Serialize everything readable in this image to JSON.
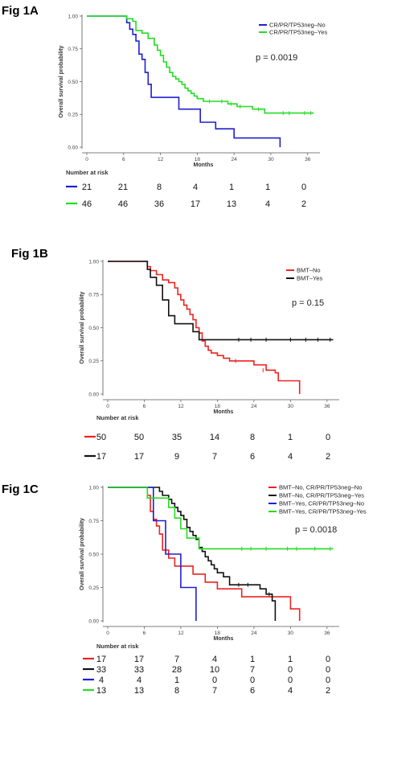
{
  "chart_data": [
    {
      "type": "line",
      "panel_label": "Fig 1A",
      "xlabel": "Months",
      "ylabel": "Overall survival probability",
      "xlim": [
        0,
        38
      ],
      "ylim": [
        0,
        1
      ],
      "xticks": [
        0,
        6,
        12,
        18,
        24,
        30,
        36
      ],
      "yticks": [
        "0.00",
        "0.25",
        "0.50",
        "0.75",
        "1.00"
      ],
      "grid": false,
      "legend_position": "top-right",
      "p_value": "p = 0.0019",
      "risk_table_title": "Number at risk",
      "risk_table": [
        {
          "color": "#1f1fd1",
          "values": [
            "21",
            "21",
            "8",
            "4",
            "1",
            "1",
            "0"
          ]
        },
        {
          "color": "#22dd22",
          "values": [
            "46",
            "46",
            "36",
            "17",
            "13",
            "4",
            "2"
          ]
        }
      ],
      "series": [
        {
          "name": "CR/PR/TP53neg–No",
          "color": "#1f1fd1",
          "x": [
            0,
            6,
            6.5,
            7,
            7.5,
            8,
            8.5,
            9,
            9.5,
            10,
            10.5,
            14,
            15,
            18,
            18.5,
            21,
            24,
            31.5
          ],
          "y": [
            1.0,
            1.0,
            0.95,
            0.9,
            0.86,
            0.81,
            0.71,
            0.67,
            0.57,
            0.48,
            0.38,
            0.38,
            0.29,
            0.29,
            0.19,
            0.14,
            0.07,
            0.0
          ],
          "end_x": 31.5,
          "censor_x": [],
          "censor_y": []
        },
        {
          "name": "CR/PR/TP53neg–Yes",
          "color": "#22dd22",
          "x": [
            0,
            6.5,
            7.5,
            8,
            9,
            10,
            11,
            11.5,
            12,
            12.5,
            13,
            13.5,
            14,
            14.5,
            15,
            15.5,
            16,
            16.5,
            17,
            17.5,
            18,
            19,
            20,
            21,
            23,
            24.5,
            27,
            29,
            37
          ],
          "y": [
            1.0,
            0.98,
            0.96,
            0.89,
            0.87,
            0.83,
            0.78,
            0.74,
            0.7,
            0.65,
            0.61,
            0.57,
            0.54,
            0.52,
            0.5,
            0.48,
            0.45,
            0.43,
            0.41,
            0.39,
            0.37,
            0.35,
            0.35,
            0.35,
            0.33,
            0.31,
            0.29,
            0.26,
            0.26
          ],
          "end_x": 37,
          "censor_x": [
            20,
            22,
            23.5,
            25,
            28,
            32,
            33,
            35.5,
            36.5
          ],
          "censor_y": [
            0.35,
            0.35,
            0.33,
            0.31,
            0.29,
            0.26,
            0.26,
            0.26,
            0.26
          ]
        }
      ]
    },
    {
      "type": "line",
      "panel_label": "Fig 1B",
      "xlabel": "Months",
      "ylabel": "Overall survival probability",
      "xlim": [
        0,
        38
      ],
      "ylim": [
        0,
        1
      ],
      "xticks": [
        0,
        6,
        12,
        18,
        24,
        30,
        36
      ],
      "yticks": [
        "0.00",
        "0.25",
        "0.50",
        "0.75",
        "1.00"
      ],
      "grid": false,
      "legend_position": "top-right",
      "p_value": "p = 0.15",
      "risk_table_title": "Number at risk",
      "risk_table": [
        {
          "color": "#ee2222",
          "values": [
            "50",
            "50",
            "35",
            "14",
            "8",
            "1",
            "0"
          ]
        },
        {
          "color": "#111111",
          "values": [
            "17",
            "17",
            "9",
            "7",
            "6",
            "4",
            "2"
          ]
        }
      ],
      "series": [
        {
          "name": "BMT–No",
          "color": "#ee2222",
          "x": [
            0,
            6,
            6.5,
            7,
            8,
            9,
            10,
            11,
            11.5,
            12,
            12.5,
            13,
            13.5,
            14,
            14.5,
            15,
            15.5,
            16,
            16.5,
            17,
            18,
            19,
            20,
            22,
            24,
            26,
            27.5,
            28,
            31.5
          ],
          "y": [
            1.0,
            1.0,
            0.96,
            0.93,
            0.9,
            0.86,
            0.84,
            0.8,
            0.75,
            0.71,
            0.67,
            0.64,
            0.6,
            0.56,
            0.5,
            0.46,
            0.4,
            0.36,
            0.33,
            0.31,
            0.29,
            0.27,
            0.25,
            0.25,
            0.22,
            0.18,
            0.16,
            0.1,
            0.0
          ],
          "end_x": 31.5,
          "censor_x": [
            21,
            25.5
          ],
          "censor_y": [
            0.25,
            0.18
          ]
        },
        {
          "name": "BMT–Yes",
          "color": "#111111",
          "x": [
            0,
            6,
            6.5,
            7,
            8,
            9,
            10,
            11,
            14,
            15,
            37
          ],
          "y": [
            1.0,
            1.0,
            0.94,
            0.88,
            0.82,
            0.71,
            0.59,
            0.53,
            0.47,
            0.41,
            0.41
          ],
          "end_x": 37,
          "censor_x": [
            21.5,
            23.5,
            26,
            30,
            32.5,
            34.5,
            36.5
          ],
          "censor_y": [
            0.41,
            0.41,
            0.41,
            0.41,
            0.41,
            0.41,
            0.41
          ]
        }
      ]
    },
    {
      "type": "line",
      "panel_label": "Fig 1C",
      "xlabel": "Months",
      "ylabel": "Overall survival probability",
      "xlim": [
        0,
        38
      ],
      "ylim": [
        0,
        1
      ],
      "xticks": [
        0,
        6,
        12,
        18,
        24,
        30,
        36
      ],
      "yticks": [
        "0.00",
        "0.25",
        "0.50",
        "0.75",
        "1.00"
      ],
      "grid": false,
      "legend_position": "top-right",
      "p_value": "p = 0.0018",
      "risk_table_title": "Number at risk",
      "risk_table": [
        {
          "color": "#ee2222",
          "values": [
            "17",
            "17",
            "7",
            "4",
            "1",
            "1",
            "0"
          ]
        },
        {
          "color": "#111111",
          "values": [
            "33",
            "33",
            "28",
            "10",
            "7",
            "0",
            "0"
          ]
        },
        {
          "color": "#1f1fd1",
          "values": [
            "4",
            "4",
            "1",
            "0",
            "0",
            "0",
            "0"
          ]
        },
        {
          "color": "#22dd22",
          "values": [
            "13",
            "13",
            "8",
            "7",
            "6",
            "4",
            "2"
          ]
        }
      ],
      "series": [
        {
          "name": "BMT–No, CR/PR/TP53neg–No",
          "color": "#ee2222",
          "x": [
            0,
            6,
            6.5,
            7,
            7.5,
            8,
            8.5,
            9,
            10,
            11,
            13,
            14,
            16,
            18,
            22,
            24,
            30,
            31.5
          ],
          "y": [
            1.0,
            1.0,
            0.94,
            0.82,
            0.76,
            0.71,
            0.65,
            0.53,
            0.47,
            0.41,
            0.41,
            0.35,
            0.29,
            0.24,
            0.18,
            0.18,
            0.09,
            0.0
          ],
          "end_x": 31.5,
          "censor_x": [],
          "censor_y": []
        },
        {
          "name": "BMT–No, CR/PR/TP53neg–Yes",
          "color": "#111111",
          "x": [
            0,
            8,
            8.5,
            9,
            10,
            10.5,
            11,
            11.5,
            12,
            12.5,
            13,
            13.5,
            14,
            14.5,
            15,
            15.5,
            16,
            16.5,
            17,
            17.5,
            18,
            19,
            20,
            24,
            25,
            26,
            27,
            27.5
          ],
          "y": [
            1.0,
            1.0,
            0.97,
            0.94,
            0.91,
            0.88,
            0.85,
            0.82,
            0.79,
            0.76,
            0.7,
            0.67,
            0.64,
            0.61,
            0.55,
            0.52,
            0.48,
            0.45,
            0.42,
            0.39,
            0.36,
            0.33,
            0.27,
            0.27,
            0.24,
            0.2,
            0.15,
            0.0
          ],
          "end_x": 27.5,
          "censor_x": [
            21.5,
            23,
            26.5
          ],
          "censor_y": [
            0.27,
            0.27,
            0.2
          ]
        },
        {
          "name": "BMT–Yes, CR/PR/TP53neg–No",
          "color": "#1f1fd1",
          "x": [
            0,
            7.5,
            9.5,
            12,
            14.5
          ],
          "y": [
            1.0,
            0.75,
            0.5,
            0.25,
            0.0
          ],
          "end_x": 14.5,
          "censor_x": [],
          "censor_y": []
        },
        {
          "name": "BMT–Yes, CR/PR/TP53neg–Yes",
          "color": "#22dd22",
          "x": [
            0,
            6.5,
            7.5,
            10,
            11,
            12,
            13,
            15,
            37
          ],
          "y": [
            1.0,
            0.92,
            0.92,
            0.85,
            0.77,
            0.69,
            0.62,
            0.54,
            0.54
          ],
          "end_x": 37,
          "censor_x": [
            22,
            23.5,
            26,
            29.5,
            31,
            34,
            36.5
          ],
          "censor_y": [
            0.54,
            0.54,
            0.54,
            0.54,
            0.54,
            0.54,
            0.54
          ]
        }
      ]
    }
  ]
}
